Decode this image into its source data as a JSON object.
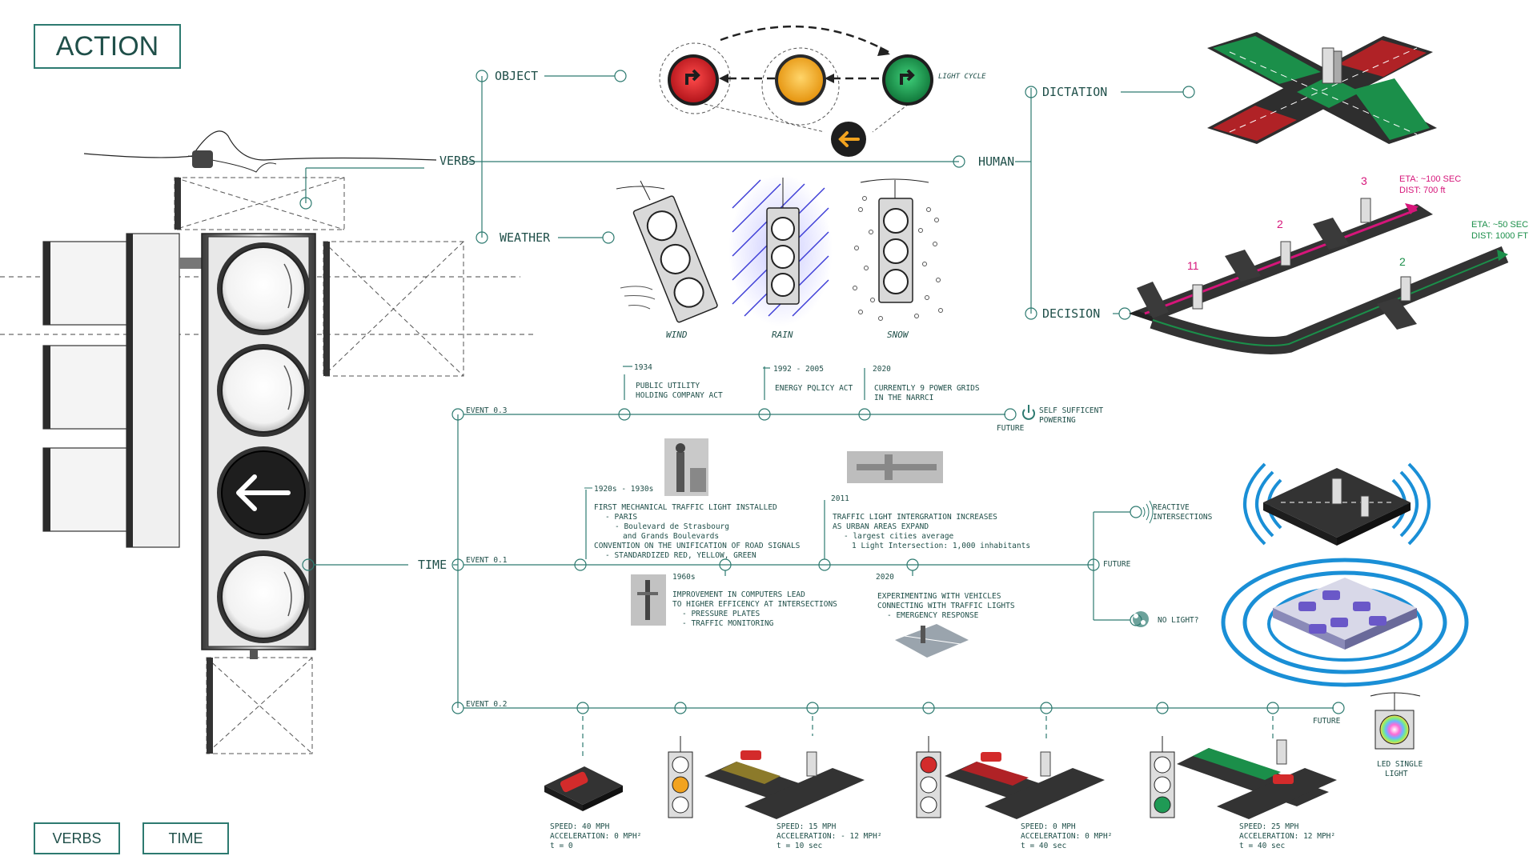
{
  "title_button": "ACTION",
  "bottom_buttons": {
    "verbs": "VERBS",
    "time": "TIME"
  },
  "branches": {
    "verbs": "VERBS",
    "object": "OBJECT",
    "weather": "WEATHER",
    "human": "HUMAN",
    "dictation": "DICTATION",
    "decision": "DECISION",
    "time": "TIME"
  },
  "object": {
    "light_cycle": "LIGHT CYCLE"
  },
  "weather": {
    "wind": "WIND",
    "rain": "RAIN",
    "snow": "SNOW"
  },
  "decision": {
    "route1_eta": "ETA: ~100 SEC",
    "route1_dist": "DIST: 700 ft",
    "route2_eta": "ETA: ~50 SEC",
    "route2_dist": "DIST: 1000 FT",
    "num_11": "11",
    "num_2a": "2",
    "num_3": "3",
    "num_2b": "2"
  },
  "event03": {
    "label": "EVENT 0.3",
    "y1934": "1934",
    "t1934a": "PUBLIC UTILITY",
    "t1934b": "HOLDING COMPANY ACT",
    "y1992": "1992 - 2005",
    "t1992": "ENERGY PQLICY ACT",
    "y2020": "2020",
    "t2020a": "CURRENTLY 9 POWER GRIDS",
    "t2020b": "IN THE NARRCI",
    "future": "FUTURE",
    "self_a": "SELF SUFFICENT",
    "self_b": "POWERING"
  },
  "event01": {
    "label": "EVENT 0.1",
    "y1920": "1920s - 1930s",
    "l1": "FIRST MECHANICAL TRAFFIC LIGHT INSTALLED",
    "l2": "- PARIS",
    "l3": "- Boulevard de Strasbourg",
    "l4": "and Grands Boulevards",
    "l5": "CONVENTION ON THE UNIFICATION OF ROAD SIGNALS",
    "l6": "- STANDARDIZED RED, YELLOW, GREEN",
    "y1960": "1960s",
    "c1": "IMPROVEMENT IN COMPUTERS LEAD",
    "c2": "TO HIGHER EFFICENCY AT INTERSECTIONS",
    "c3": "- PRESSURE PLATES",
    "c4": "- TRAFFIC MONITORING",
    "y2011": "2011",
    "u1": "TRAFFIC LIGHT INTERGRATION INCREASES",
    "u2": "AS URBAN AREAS EXPAND",
    "u3": "- largest cities average",
    "u4": "1 Light Intersection: 1,000 inhabitants",
    "y2020": "2020",
    "v1": "EXPERIMENTING WITH VEHICLES",
    "v2": "CONNECTING WITH TRAFFIC LIGHTS",
    "v3": "- EMERGENCY RESPONSE",
    "future": "FUTURE",
    "reactive_a": "REACTIVE",
    "reactive_b": "INTERSECTIONS",
    "nolight": "NO LIGHT?"
  },
  "event02": {
    "label": "EVENT 0.2",
    "future": "FUTURE",
    "led_a": "LED SINGLE",
    "led_b": "LIGHT",
    "s1a": "SPEED: 40 MPH",
    "s1b": "ACCELERATION: 0 MPH²",
    "s1c": "t = 0",
    "s2a": "SPEED: 15 MPH",
    "s2b": "ACCELERATION: - 12 MPH²",
    "s2c": "t = 10 sec",
    "s3a": "SPEED: 0 MPH",
    "s3b": "ACCELERATION: 0 MPH²",
    "s3c": "t = 40 sec",
    "s4a": "SPEED: 25 MPH",
    "s4b": "ACCELERATION: 12 MPH²",
    "s4c": "t = 40 sec"
  },
  "colors": {
    "teal": "#2d7a70",
    "red": "#c0282c",
    "amber": "#f2a31f",
    "green": "#1f9a55",
    "magenta": "#d6157a",
    "blue": "#1a8fd6"
  }
}
